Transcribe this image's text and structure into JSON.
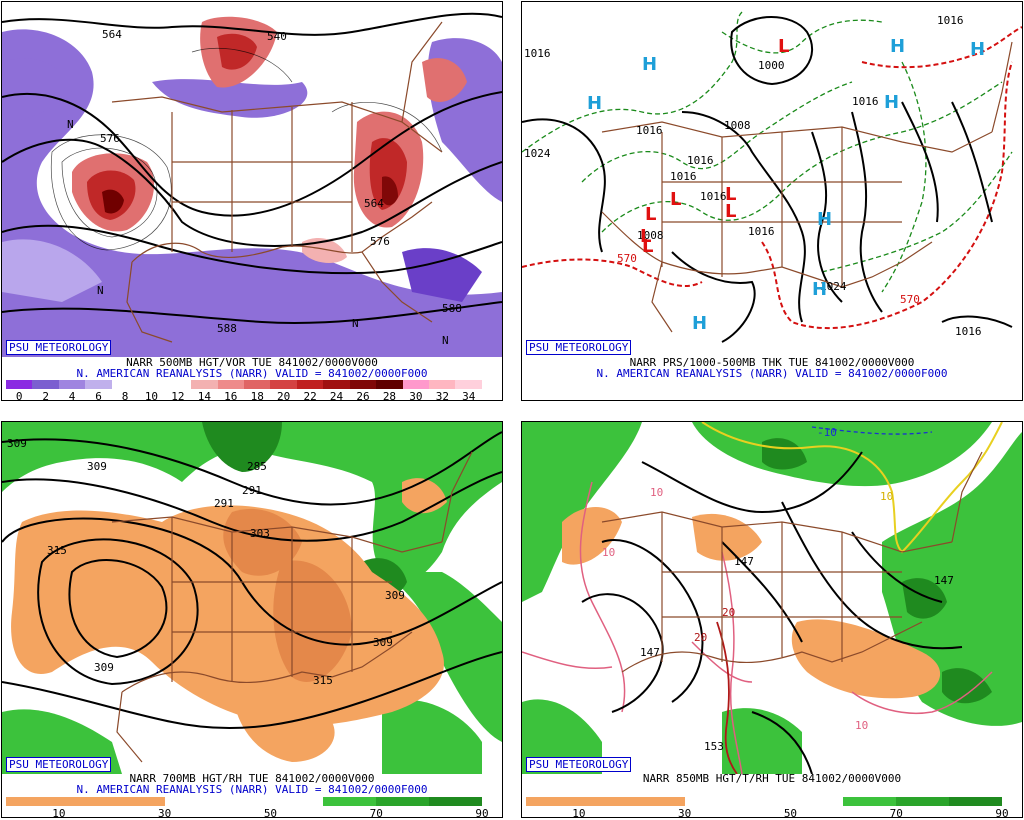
{
  "panels": [
    {
      "id": "p500",
      "badge": "PSU METEOROLOGY",
      "caption_line1": "NARR 500MB HGT/VOR TUE 841002/0000V000",
      "caption_line2": "N. AMERICAN REANALYSIS (NARR) VALID = 841002/0000F000",
      "colorbar_ticks": [
        "0",
        "2",
        "4",
        "6",
        "8",
        "10",
        "12",
        "14",
        "16",
        "18",
        "20",
        "22",
        "24",
        "26",
        "28",
        "30",
        "32",
        "34"
      ],
      "colorbar_colors": [
        "#8a2be2",
        "#7b5fd0",
        "#9f84e0",
        "#c0b0ec",
        "#ffffff",
        "#ffffff",
        "#ffffff",
        "#f3b1b1",
        "#ee8a8a",
        "#e06464",
        "#d44242",
        "#c02020",
        "#a01010",
        "#800808",
        "#600000",
        "#ff99cc",
        "#ffb6c1",
        "#ffd0dc"
      ],
      "map_labels": [
        "564",
        "540",
        "576",
        "564",
        "576",
        "588",
        "588",
        "N",
        "N",
        "N",
        "N"
      ]
    },
    {
      "id": "pprs",
      "badge": "PSU METEOROLOGY",
      "caption_line1": "NARR PRS/1000-500MB THK TUE 841002/0000V000",
      "caption_line2": "N. AMERICAN REANALYSIS (NARR) VALID = 841002/0000F000",
      "map_labels": [
        "1016",
        "1016",
        "1024",
        "1000",
        "1008",
        "1016",
        "1016",
        "1016",
        "1016",
        "1016",
        "1016",
        "1008",
        "1024",
        "570",
        "570",
        "1016"
      ],
      "highs": [
        "H",
        "H",
        "H",
        "H",
        "H",
        "H",
        "H",
        "H"
      ],
      "lows": [
        "L",
        "L",
        "L",
        "L",
        "L",
        "L",
        "L"
      ]
    },
    {
      "id": "p700",
      "badge": "PSU METEOROLOGY",
      "caption_line1": "NARR 700MB HGT/RH TUE 841002/0000V000",
      "caption_line2": "N. AMERICAN REANALYSIS (NARR) VALID = 841002/0000F000",
      "colorbar_ticks": [
        "10",
        "30",
        "50",
        "70",
        "90"
      ],
      "map_labels": [
        "309",
        "309",
        "315",
        "285",
        "291",
        "297",
        "303",
        "309",
        "309",
        "309",
        "315"
      ]
    },
    {
      "id": "p850",
      "badge": "PSU METEOROLOGY",
      "caption_line1": "NARR 850MB HGT/T/RH TUE 841002/0000V000",
      "colorbar_ticks": [
        "10",
        "30",
        "50",
        "70",
        "90"
      ],
      "map_labels": [
        "-10",
        "10",
        "10",
        "10",
        "20",
        "20",
        "147",
        "147",
        "147",
        "153",
        "10"
      ]
    }
  ]
}
